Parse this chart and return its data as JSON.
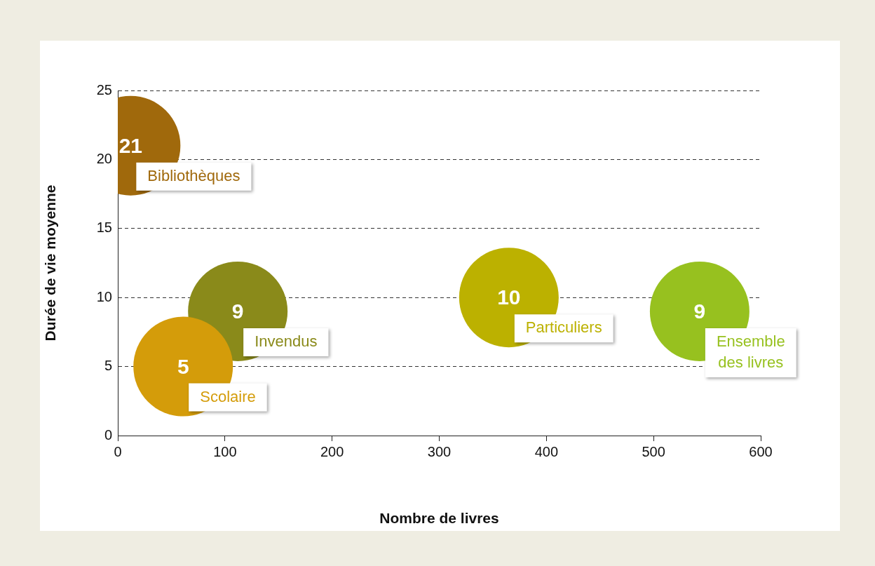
{
  "chart_data": {
    "type": "bubble",
    "xlabel": "Nombre de livres",
    "ylabel": "Durée de vie moyenne",
    "xlim": [
      0,
      600
    ],
    "xticks": [
      0,
      100,
      200,
      300,
      400,
      500,
      600
    ],
    "ylim": [
      0,
      25
    ],
    "yticks": [
      0,
      5,
      10,
      15,
      20,
      25
    ],
    "grid": "y",
    "line_style": "dashed",
    "legend": false,
    "data_labels": true,
    "series": [
      {
        "name": "Bibliothèques",
        "color": "#a0690c",
        "x": [
          12
        ],
        "values": [
          21
        ],
        "sizes": [
          1
        ]
      },
      {
        "name": "Scolaire",
        "color": "#d49c0a",
        "x": [
          61
        ],
        "values": [
          5
        ],
        "sizes": [
          1
        ]
      },
      {
        "name": "Invendus",
        "color": "#8a8a1a",
        "x": [
          112
        ],
        "values": [
          9
        ],
        "sizes": [
          1
        ]
      },
      {
        "name": "Particuliers",
        "color": "#bcb100",
        "x": [
          365
        ],
        "values": [
          10
        ],
        "sizes": [
          1
        ]
      },
      {
        "name": "Ensemble des livres",
        "color": "#97c11f",
        "x": [
          543
        ],
        "values": [
          9
        ],
        "sizes": [
          1
        ]
      }
    ]
  }
}
